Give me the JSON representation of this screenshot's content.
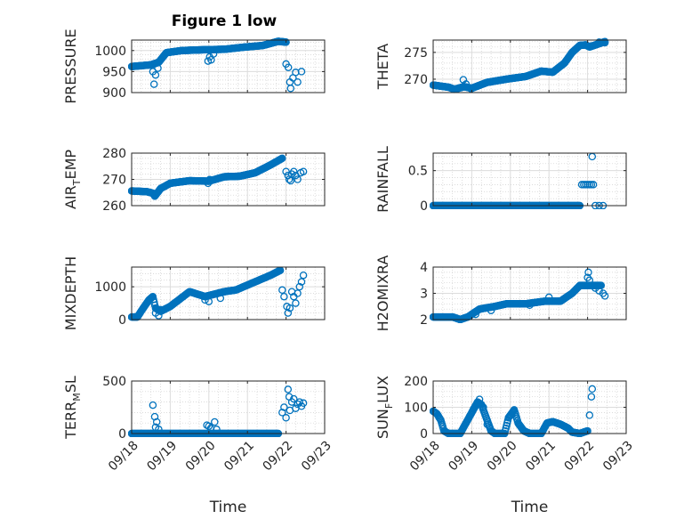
{
  "figure_title": "Figure 1 low",
  "colors": {
    "marker": "#0072BD",
    "axis": "#262626",
    "grid": "#cfcfcf",
    "background": "#ffffff"
  },
  "chart_data": [
    {
      "type": "scatter",
      "title": "Figure 1 low",
      "xlabel": "",
      "ylabel": "PRESSURE",
      "xlim": [
        "09/18",
        "09/23"
      ],
      "ylim": [
        900,
        1025
      ],
      "yticks": [
        900,
        950,
        1000
      ],
      "x_tick_labels": [],
      "grid": true,
      "marker": "circle-open",
      "anchors": [
        [
          18.0,
          962
        ],
        [
          18.5,
          966
        ],
        [
          18.7,
          972
        ],
        [
          18.9,
          995
        ],
        [
          19.3,
          1000
        ],
        [
          19.9,
          1002
        ],
        [
          20.4,
          1003
        ],
        [
          20.9,
          1008
        ],
        [
          21.4,
          1012
        ],
        [
          21.8,
          1022
        ],
        [
          22.0,
          1020
        ]
      ],
      "outliers": [
        [
          18.55,
          950
        ],
        [
          18.58,
          920
        ],
        [
          18.62,
          942
        ],
        [
          18.68,
          958
        ],
        [
          19.98,
          975
        ],
        [
          20.02,
          985
        ],
        [
          20.06,
          978
        ],
        [
          20.12,
          992
        ],
        [
          22.0,
          968
        ],
        [
          22.06,
          960
        ],
        [
          22.1,
          925
        ],
        [
          22.12,
          910
        ],
        [
          22.18,
          935
        ],
        [
          22.25,
          948
        ],
        [
          22.3,
          925
        ],
        [
          22.4,
          950
        ]
      ]
    },
    {
      "type": "scatter",
      "title": "",
      "xlabel": "",
      "ylabel": "THETA",
      "xlim": [
        "09/18",
        "09/23"
      ],
      "ylim": [
        267.5,
        277.3
      ],
      "yticks": [
        270,
        275
      ],
      "x_tick_labels": [],
      "grid": true,
      "marker": "circle-open",
      "anchors": [
        [
          18.0,
          268.9
        ],
        [
          18.4,
          268.5
        ],
        [
          18.55,
          268.1
        ],
        [
          18.8,
          268.6
        ],
        [
          19.0,
          268.3
        ],
        [
          19.4,
          269.4
        ],
        [
          19.9,
          270.0
        ],
        [
          20.4,
          270.5
        ],
        [
          20.8,
          271.5
        ],
        [
          21.1,
          271.3
        ],
        [
          21.4,
          273.0
        ],
        [
          21.6,
          275.0
        ],
        [
          21.8,
          276.3
        ],
        [
          21.95,
          276.4
        ],
        [
          22.05,
          276.0
        ],
        [
          22.25,
          276.5
        ],
        [
          22.45,
          277.0
        ]
      ],
      "outliers": [
        [
          18.78,
          269.9
        ],
        [
          18.85,
          269.1
        ],
        [
          18.98,
          268.2
        ],
        [
          22.1,
          276.2
        ],
        [
          22.3,
          276.9
        ],
        [
          22.45,
          276.8
        ]
      ]
    },
    {
      "type": "scatter",
      "title": "",
      "xlabel": "",
      "ylabel": "AIR_TEMP",
      "xlim": [
        "09/18",
        "09/23"
      ],
      "ylim": [
        260,
        280
      ],
      "yticks": [
        260,
        270,
        280
      ],
      "x_tick_labels": [],
      "grid": true,
      "marker": "circle-open",
      "anchors": [
        [
          18.0,
          265.6
        ],
        [
          18.4,
          265.3
        ],
        [
          18.55,
          264.7
        ],
        [
          18.6,
          263.6
        ],
        [
          18.75,
          266.5
        ],
        [
          19.0,
          268.5
        ],
        [
          19.5,
          269.5
        ],
        [
          20.0,
          269.3
        ],
        [
          20.4,
          271.0
        ],
        [
          20.8,
          271.2
        ],
        [
          21.2,
          272.5
        ],
        [
          21.6,
          275.5
        ],
        [
          21.9,
          278.0
        ]
      ],
      "outliers": [
        [
          19.98,
          268.5
        ],
        [
          20.02,
          269.9
        ],
        [
          22.0,
          273.0
        ],
        [
          22.05,
          271.5
        ],
        [
          22.08,
          270.0
        ],
        [
          22.12,
          269.5
        ],
        [
          22.15,
          272.0
        ],
        [
          22.2,
          273.0
        ],
        [
          22.25,
          271.5
        ],
        [
          22.3,
          270.0
        ],
        [
          22.38,
          272.5
        ],
        [
          22.45,
          273.0
        ]
      ]
    },
    {
      "type": "scatter",
      "title": "",
      "xlabel": "",
      "ylabel": "RAINFALL",
      "xlim": [
        "09/18",
        "09/23"
      ],
      "ylim": [
        0,
        0.75
      ],
      "yticks": [
        0,
        0.5
      ],
      "x_tick_labels": [],
      "grid": true,
      "marker": "circle-open",
      "anchors": [
        [
          18.0,
          0
        ],
        [
          21.8,
          0
        ]
      ],
      "outliers": [
        [
          21.85,
          0.3
        ],
        [
          21.9,
          0.3
        ],
        [
          21.95,
          0.3
        ],
        [
          22.0,
          0.3
        ],
        [
          22.05,
          0.3
        ],
        [
          22.1,
          0.3
        ],
        [
          22.15,
          0.3
        ],
        [
          22.12,
          0.7
        ],
        [
          22.2,
          0
        ],
        [
          22.3,
          0
        ],
        [
          22.4,
          0
        ]
      ]
    },
    {
      "type": "scatter",
      "title": "",
      "xlabel": "",
      "ylabel": "MIXDEPTH",
      "xlim": [
        "09/18",
        "09/23"
      ],
      "ylim": [
        0,
        1600
      ],
      "yticks": [
        0,
        1000
      ],
      "x_tick_labels": [],
      "grid": true,
      "marker": "circle-open",
      "anchors": [
        [
          18.0,
          80
        ],
        [
          18.15,
          80
        ],
        [
          18.3,
          350
        ],
        [
          18.45,
          600
        ],
        [
          18.55,
          700
        ],
        [
          18.62,
          350
        ],
        [
          18.75,
          250
        ],
        [
          19.0,
          400
        ],
        [
          19.5,
          850
        ],
        [
          19.9,
          700
        ],
        [
          20.4,
          850
        ],
        [
          20.7,
          900
        ],
        [
          21.2,
          1150
        ],
        [
          21.6,
          1350
        ],
        [
          21.85,
          1500
        ]
      ],
      "outliers": [
        [
          18.62,
          200
        ],
        [
          18.7,
          120
        ],
        [
          18.75,
          300
        ],
        [
          19.9,
          600
        ],
        [
          20.0,
          550
        ],
        [
          20.3,
          650
        ],
        [
          21.9,
          900
        ],
        [
          21.95,
          700
        ],
        [
          22.02,
          400
        ],
        [
          22.05,
          200
        ],
        [
          22.1,
          350
        ],
        [
          22.15,
          850
        ],
        [
          22.2,
          700
        ],
        [
          22.25,
          500
        ],
        [
          22.3,
          800
        ],
        [
          22.35,
          1000
        ],
        [
          22.4,
          1150
        ],
        [
          22.45,
          1350
        ]
      ]
    },
    {
      "type": "scatter",
      "title": "",
      "xlabel": "",
      "ylabel": "H2OMIXRA",
      "xlim": [
        "09/18",
        "09/23"
      ],
      "ylim": [
        2,
        4
      ],
      "yticks": [
        2,
        3,
        4
      ],
      "x_tick_labels": [],
      "grid": true,
      "marker": "circle-open",
      "anchors": [
        [
          18.0,
          2.1
        ],
        [
          18.5,
          2.1
        ],
        [
          18.7,
          2.0
        ],
        [
          18.9,
          2.1
        ],
        [
          19.2,
          2.4
        ],
        [
          19.6,
          2.5
        ],
        [
          19.9,
          2.6
        ],
        [
          20.4,
          2.6
        ],
        [
          20.9,
          2.7
        ],
        [
          21.3,
          2.7
        ],
        [
          21.6,
          3.0
        ],
        [
          21.8,
          3.3
        ],
        [
          22.0,
          3.3
        ],
        [
          22.35,
          3.3
        ]
      ],
      "outliers": [
        [
          19.1,
          2.2
        ],
        [
          19.5,
          2.35
        ],
        [
          20.5,
          2.55
        ],
        [
          21.0,
          2.85
        ],
        [
          22.0,
          3.6
        ],
        [
          22.02,
          3.8
        ],
        [
          22.05,
          3.5
        ],
        [
          22.2,
          3.2
        ],
        [
          22.3,
          3.1
        ],
        [
          22.4,
          3.0
        ],
        [
          22.45,
          2.9
        ]
      ]
    },
    {
      "type": "scatter",
      "title": "",
      "xlabel": "Time",
      "ylabel": "TERR_MSL",
      "xlim": [
        "09/18",
        "09/23"
      ],
      "ylim": [
        0,
        500
      ],
      "yticks": [
        0,
        500
      ],
      "x_tick_labels": [
        "09/18",
        "09/19",
        "09/20",
        "09/21",
        "09/22",
        "09/23"
      ],
      "grid": true,
      "marker": "circle-open",
      "anchors": [
        [
          18.0,
          0
        ],
        [
          21.8,
          0
        ]
      ],
      "outliers": [
        [
          18.55,
          270
        ],
        [
          18.6,
          160
        ],
        [
          18.65,
          110
        ],
        [
          18.62,
          60
        ],
        [
          18.7,
          40
        ],
        [
          19.95,
          80
        ],
        [
          20.0,
          70
        ],
        [
          20.05,
          50
        ],
        [
          20.15,
          110
        ],
        [
          20.2,
          40
        ],
        [
          21.9,
          200
        ],
        [
          21.95,
          250
        ],
        [
          22.0,
          150
        ],
        [
          22.05,
          420
        ],
        [
          22.08,
          350
        ],
        [
          22.1,
          220
        ],
        [
          22.15,
          300
        ],
        [
          22.2,
          330
        ],
        [
          22.25,
          240
        ],
        [
          22.3,
          280
        ],
        [
          22.35,
          300
        ],
        [
          22.4,
          260
        ],
        [
          22.45,
          290
        ]
      ]
    },
    {
      "type": "scatter",
      "title": "",
      "xlabel": "Time",
      "ylabel": "SUN_FLUX",
      "xlim": [
        "09/18",
        "09/23"
      ],
      "ylim": [
        0,
        200
      ],
      "yticks": [
        0,
        100,
        200
      ],
      "x_tick_labels": [
        "09/18",
        "09/19",
        "09/20",
        "09/21",
        "09/22",
        "09/23"
      ],
      "grid": true,
      "marker": "circle-open",
      "anchors": [
        [
          18.0,
          85
        ],
        [
          18.1,
          75
        ],
        [
          18.2,
          50
        ],
        [
          18.28,
          10
        ],
        [
          18.4,
          0
        ],
        [
          18.7,
          0
        ],
        [
          18.85,
          40
        ],
        [
          19.0,
          80
        ],
        [
          19.15,
          120
        ],
        [
          19.25,
          110
        ],
        [
          19.35,
          70
        ],
        [
          19.5,
          10
        ],
        [
          19.6,
          0
        ],
        [
          19.85,
          0
        ],
        [
          19.95,
          60
        ],
        [
          20.1,
          90
        ],
        [
          20.2,
          40
        ],
        [
          20.35,
          10
        ],
        [
          20.5,
          0
        ],
        [
          20.8,
          0
        ],
        [
          20.95,
          40
        ],
        [
          21.1,
          45
        ],
        [
          21.3,
          35
        ],
        [
          21.5,
          20
        ],
        [
          21.6,
          5
        ],
        [
          21.8,
          0
        ],
        [
          22.0,
          10
        ]
      ],
      "outliers": [
        [
          19.05,
          95
        ],
        [
          19.1,
          105
        ],
        [
          19.2,
          130
        ],
        [
          19.3,
          100
        ],
        [
          19.4,
          35
        ],
        [
          22.05,
          70
        ],
        [
          22.1,
          140
        ],
        [
          22.12,
          170
        ]
      ]
    }
  ]
}
